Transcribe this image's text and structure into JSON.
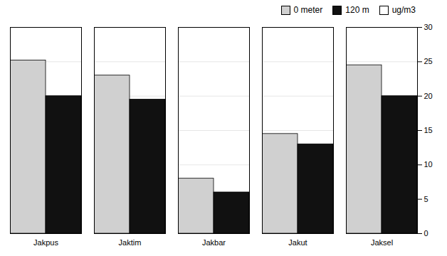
{
  "chart_data": {
    "type": "bar",
    "categories": [
      "Jakpus",
      "Jaktim",
      "Jakbar",
      "Jakut",
      "Jaksel"
    ],
    "series": [
      {
        "name": "0 meter",
        "color": "#d0d0d0",
        "values": [
          25.2,
          23.0,
          8.0,
          14.5,
          24.5
        ]
      },
      {
        "name": "120 m",
        "color": "#111111",
        "values": [
          20.0,
          19.5,
          6.0,
          13.0,
          20.0
        ]
      },
      {
        "name": "ug/m3",
        "color": "#ffffff",
        "values": [
          null,
          null,
          null,
          null,
          null
        ]
      }
    ],
    "ylim": [
      0,
      30
    ],
    "yticks": [
      0,
      5,
      10,
      15,
      20,
      25,
      30
    ],
    "grid": true
  }
}
